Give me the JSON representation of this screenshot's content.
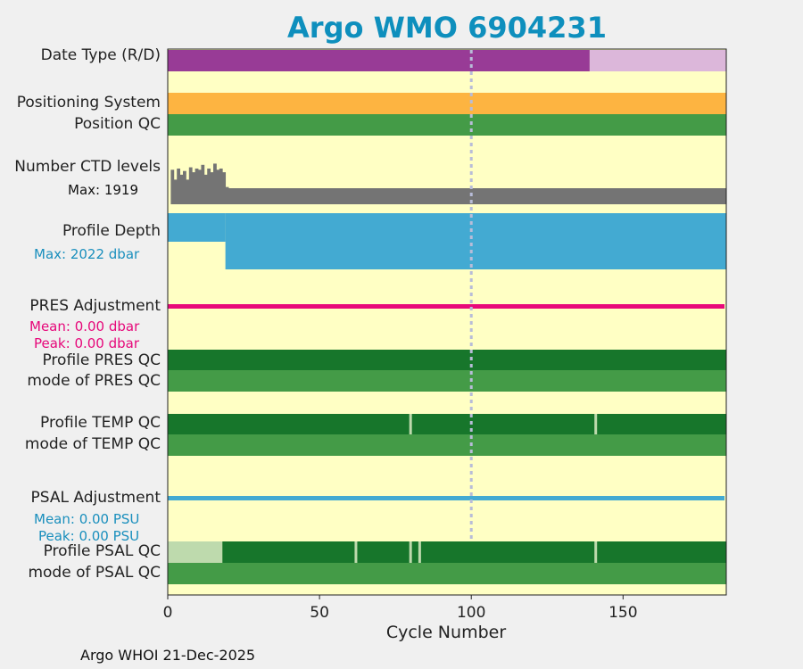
{
  "title": "Argo WMO 6904231",
  "credit": "Argo WHOI 21-Dec-2025",
  "colors": {
    "bg": "#ffffc4",
    "purple": "#983b96",
    "light_purple": "#dcb7da",
    "orange": "#fdb441",
    "green_mid": "#449b47",
    "green_dark": "#17762b",
    "green_light": "#bedaad",
    "gray": "#747474",
    "blue": "#43aad2",
    "magenta": "#e8097a",
    "blue_text": "#1a8fbd",
    "magenta_text": "#e6087a",
    "dashed": "#b8bcd8"
  },
  "panels": {
    "date_type": {
      "label": "Date Type (R/D)"
    },
    "positioning": {
      "label1": "Positioning System",
      "label2": "Position QC"
    },
    "ctd_levels": {
      "label": "Number CTD levels",
      "max_text": "Max: 1919"
    },
    "profile_depth": {
      "label": "Profile Depth",
      "max_text": "Max: 2022 dbar"
    },
    "pres_adj": {
      "label": "PRES Adjustment",
      "mean": "Mean: 0.00 dbar",
      "peak": "Peak: 0.00 dbar"
    },
    "pres_qc": {
      "label1": "Profile PRES QC",
      "label2": "mode of PRES QC"
    },
    "temp_qc": {
      "label1": "Profile TEMP QC",
      "label2": "mode of TEMP QC"
    },
    "psal_adj": {
      "label": "PSAL Adjustment",
      "mean": "Mean: 0.00 PSU",
      "peak": "Peak: 0.00 PSU"
    },
    "psal_qc": {
      "label1": "Profile PSAL QC",
      "label2": "mode of PSAL QC"
    }
  },
  "chart_data": {
    "type": "bar",
    "title": "Argo WMO 6904231",
    "xlabel": "Cycle Number",
    "xlim": [
      0,
      184
    ],
    "xticks": [
      0,
      50,
      100,
      150
    ],
    "reference_line_cycle": 100,
    "date_type": {
      "realtime_start_cycle": 139,
      "last_cycle": 184
    },
    "ctd_levels": {
      "max": 1919,
      "values": [
        0,
        1400,
        1000,
        1450,
        1200,
        1350,
        1000,
        1500,
        1300,
        1450,
        1400,
        1600,
        1200,
        1450,
        1300,
        1650,
        1400,
        1450,
        1300,
        700
      ]
    },
    "profile_depth": {
      "max_dbar": 2022,
      "shallow_until_cycle": 19
    },
    "temp_qc_flag_cycles": [
      80,
      141
    ],
    "psal_qc_light_until_cycle": 18,
    "psal_qc_flag_cycles": [
      62,
      80,
      83,
      141
    ]
  }
}
